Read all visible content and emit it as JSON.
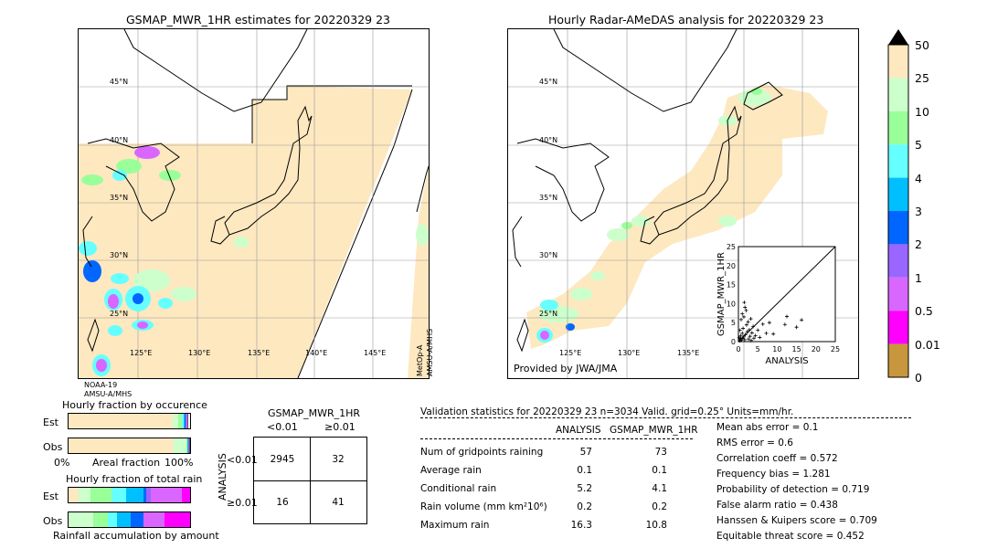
{
  "left_map": {
    "title": "GSMAP_MWR_1HR estimates for 20220329 23",
    "lat_labels": [
      "45°N",
      "40°N",
      "35°N",
      "30°N",
      "25°N"
    ],
    "lon_labels": [
      "125°E",
      "130°E",
      "135°E",
      "140°E",
      "145°E"
    ],
    "sat_label_left_1": "NOAA-19",
    "sat_label_left_2": "AMSU-A/MHS",
    "sat_label_right_1": "MetOp-A",
    "sat_label_right_2": "AMSU-A/MHS"
  },
  "right_map": {
    "title": "Hourly Radar-AMeDAS analysis for 20220329 23",
    "lat_labels": [
      "45°N",
      "40°N",
      "35°N",
      "30°N",
      "25°N"
    ],
    "lon_labels": [
      "125°E",
      "130°E",
      "135°E"
    ],
    "credit": "Provided by JWA/JMA"
  },
  "colorbar": {
    "labels": [
      "50",
      "25",
      "10",
      "5",
      "4",
      "3",
      "2",
      "1",
      "0.5",
      "0.01",
      "0"
    ],
    "colors": [
      "#c8963c",
      "#ff00ff",
      "#d966ff",
      "#9966ff",
      "#0066ff",
      "#00bfff",
      "#66ffff",
      "#99ff99",
      "#ccffcc",
      "#fde8c0"
    ],
    "over_color": "#000000"
  },
  "fraction_occurrence": {
    "title": "Hourly fraction by occurence",
    "row_labels": [
      "Est",
      "Obs"
    ],
    "axis_left": "0%",
    "axis_mid": "Areal fraction",
    "axis_right": "100%"
  },
  "fraction_total": {
    "title": "Hourly fraction of total rain",
    "row_labels": [
      "Est",
      "Obs"
    ],
    "axis_caption": "Rainfall accumulation by amount"
  },
  "contingency": {
    "title": "GSMAP_MWR_1HR",
    "col_labels": [
      "<0.01",
      "≥0.01"
    ],
    "row_axis_label": "ANALYSIS",
    "row_labels": [
      "<0.01",
      "≥0.01"
    ],
    "cells": [
      [
        "2945",
        "32"
      ],
      [
        "16",
        "41"
      ]
    ]
  },
  "validation": {
    "header": "Validation statistics for 20220329 23  n=3034 Valid. grid=0.25° Units=mm/hr.",
    "col_headers": [
      "ANALYSIS",
      "GSMAP_MWR_1HR"
    ],
    "rows": [
      {
        "label": "Num of gridpoints raining",
        "analysis": "57",
        "gsmap": "73"
      },
      {
        "label": "Average rain",
        "analysis": "0.1",
        "gsmap": "0.1"
      },
      {
        "label": "Conditional rain",
        "analysis": "5.2",
        "gsmap": "4.1"
      },
      {
        "label": "Rain volume (mm km²10⁶)",
        "analysis": "0.2",
        "gsmap": "0.2"
      },
      {
        "label": "Maximum rain",
        "analysis": "16.3",
        "gsmap": "10.8"
      }
    ],
    "scores": [
      "Mean abs error =    0.1",
      "RMS error =    0.6",
      "Correlation coeff =  0.572",
      "Frequency bias =  1.281",
      "Probability of detection =  0.719",
      "False alarm ratio =  0.438",
      "Hanssen & Kuipers score =  0.709",
      "Equitable threat score =  0.452"
    ]
  },
  "chart_data": [
    {
      "type": "scatter",
      "xlabel": "ANALYSIS",
      "ylabel": "GSMAP_MWR_1HR",
      "xlim": [
        0,
        25
      ],
      "ylim": [
        0,
        25
      ],
      "ticks": [
        "0",
        "5",
        "10",
        "15",
        "20",
        "25"
      ],
      "points": [
        [
          0.3,
          0.2
        ],
        [
          0.5,
          0.8
        ],
        [
          0.6,
          1.5
        ],
        [
          0.8,
          0.4
        ],
        [
          1.0,
          2.2
        ],
        [
          1.1,
          0.9
        ],
        [
          1.2,
          3.5
        ],
        [
          1.3,
          1.2
        ],
        [
          1.4,
          6.5
        ],
        [
          1.5,
          10.3
        ],
        [
          1.6,
          0.5
        ],
        [
          1.8,
          1.8
        ],
        [
          2.0,
          8.2
        ],
        [
          2.1,
          4.4
        ],
        [
          2.3,
          2.6
        ],
        [
          2.5,
          5.2
        ],
        [
          2.6,
          0.7
        ],
        [
          2.8,
          3.1
        ],
        [
          3.0,
          1.4
        ],
        [
          3.2,
          6.0
        ],
        [
          3.5,
          2.3
        ],
        [
          3.8,
          4.0
        ],
        [
          4.0,
          0.9
        ],
        [
          4.4,
          1.6
        ],
        [
          5.0,
          3.0
        ],
        [
          5.5,
          1.1
        ],
        [
          6.3,
          4.6
        ],
        [
          7.2,
          2.2
        ],
        [
          8.0,
          5.0
        ],
        [
          9.0,
          2.0
        ],
        [
          12.0,
          4.5
        ],
        [
          12.5,
          6.6
        ],
        [
          15.0,
          3.8
        ],
        [
          16.3,
          5.7
        ],
        [
          0.2,
          1.0
        ],
        [
          0.7,
          5.8
        ],
        [
          1.0,
          7.3
        ],
        [
          0.4,
          3.0
        ],
        [
          1.7,
          9.0
        ],
        [
          3.3,
          0.3
        ]
      ]
    },
    {
      "type": "bar",
      "title": "Hourly fraction by occurence",
      "categories": [
        "Est",
        "Obs"
      ],
      "series": [
        {
          "values": [
            0.855,
            0.865
          ],
          "color": "#fde8c0"
        },
        {
          "values": [
            0.045,
            0.105
          ],
          "color": "#ccffcc"
        },
        {
          "values": [
            0.03,
            0.005
          ],
          "color": "#99ff99"
        },
        {
          "values": [
            0.015,
            0.005
          ],
          "color": "#66ffff"
        },
        {
          "values": [
            0.01,
            0.004
          ],
          "color": "#00bfff"
        },
        {
          "values": [
            0.01,
            0.004
          ],
          "color": "#0066ff"
        },
        {
          "values": [
            0.005,
            0.004
          ],
          "color": "#9966ff"
        },
        {
          "values": [
            0.005,
            0.004
          ],
          "color": "#d966ff"
        },
        {
          "values": [
            0.0,
            0.0
          ],
          "color": "#ff00ff"
        },
        {
          "values": [
            0.0,
            0.0
          ],
          "color": "#c8963c"
        }
      ]
    },
    {
      "type": "bar",
      "title": "Hourly fraction of total rain",
      "categories": [
        "Est",
        "Obs"
      ],
      "series": [
        {
          "values": [
            0.08,
            0.0
          ],
          "color": "#fde8c0"
        },
        {
          "values": [
            0.1,
            0.2
          ],
          "color": "#ccffcc"
        },
        {
          "values": [
            0.17,
            0.12
          ],
          "color": "#99ff99"
        },
        {
          "values": [
            0.12,
            0.08
          ],
          "color": "#66ffff"
        },
        {
          "values": [
            0.15,
            0.11
          ],
          "color": "#00bfff"
        },
        {
          "values": [
            0.02,
            0.11
          ],
          "color": "#0066ff"
        },
        {
          "values": [
            0.04,
            0.0
          ],
          "color": "#9966ff"
        },
        {
          "values": [
            0.25,
            0.17
          ],
          "color": "#d966ff"
        },
        {
          "values": [
            0.07,
            0.21
          ],
          "color": "#ff00ff"
        },
        {
          "values": [
            0.0,
            0.0
          ],
          "color": "#c8963c"
        }
      ]
    }
  ]
}
